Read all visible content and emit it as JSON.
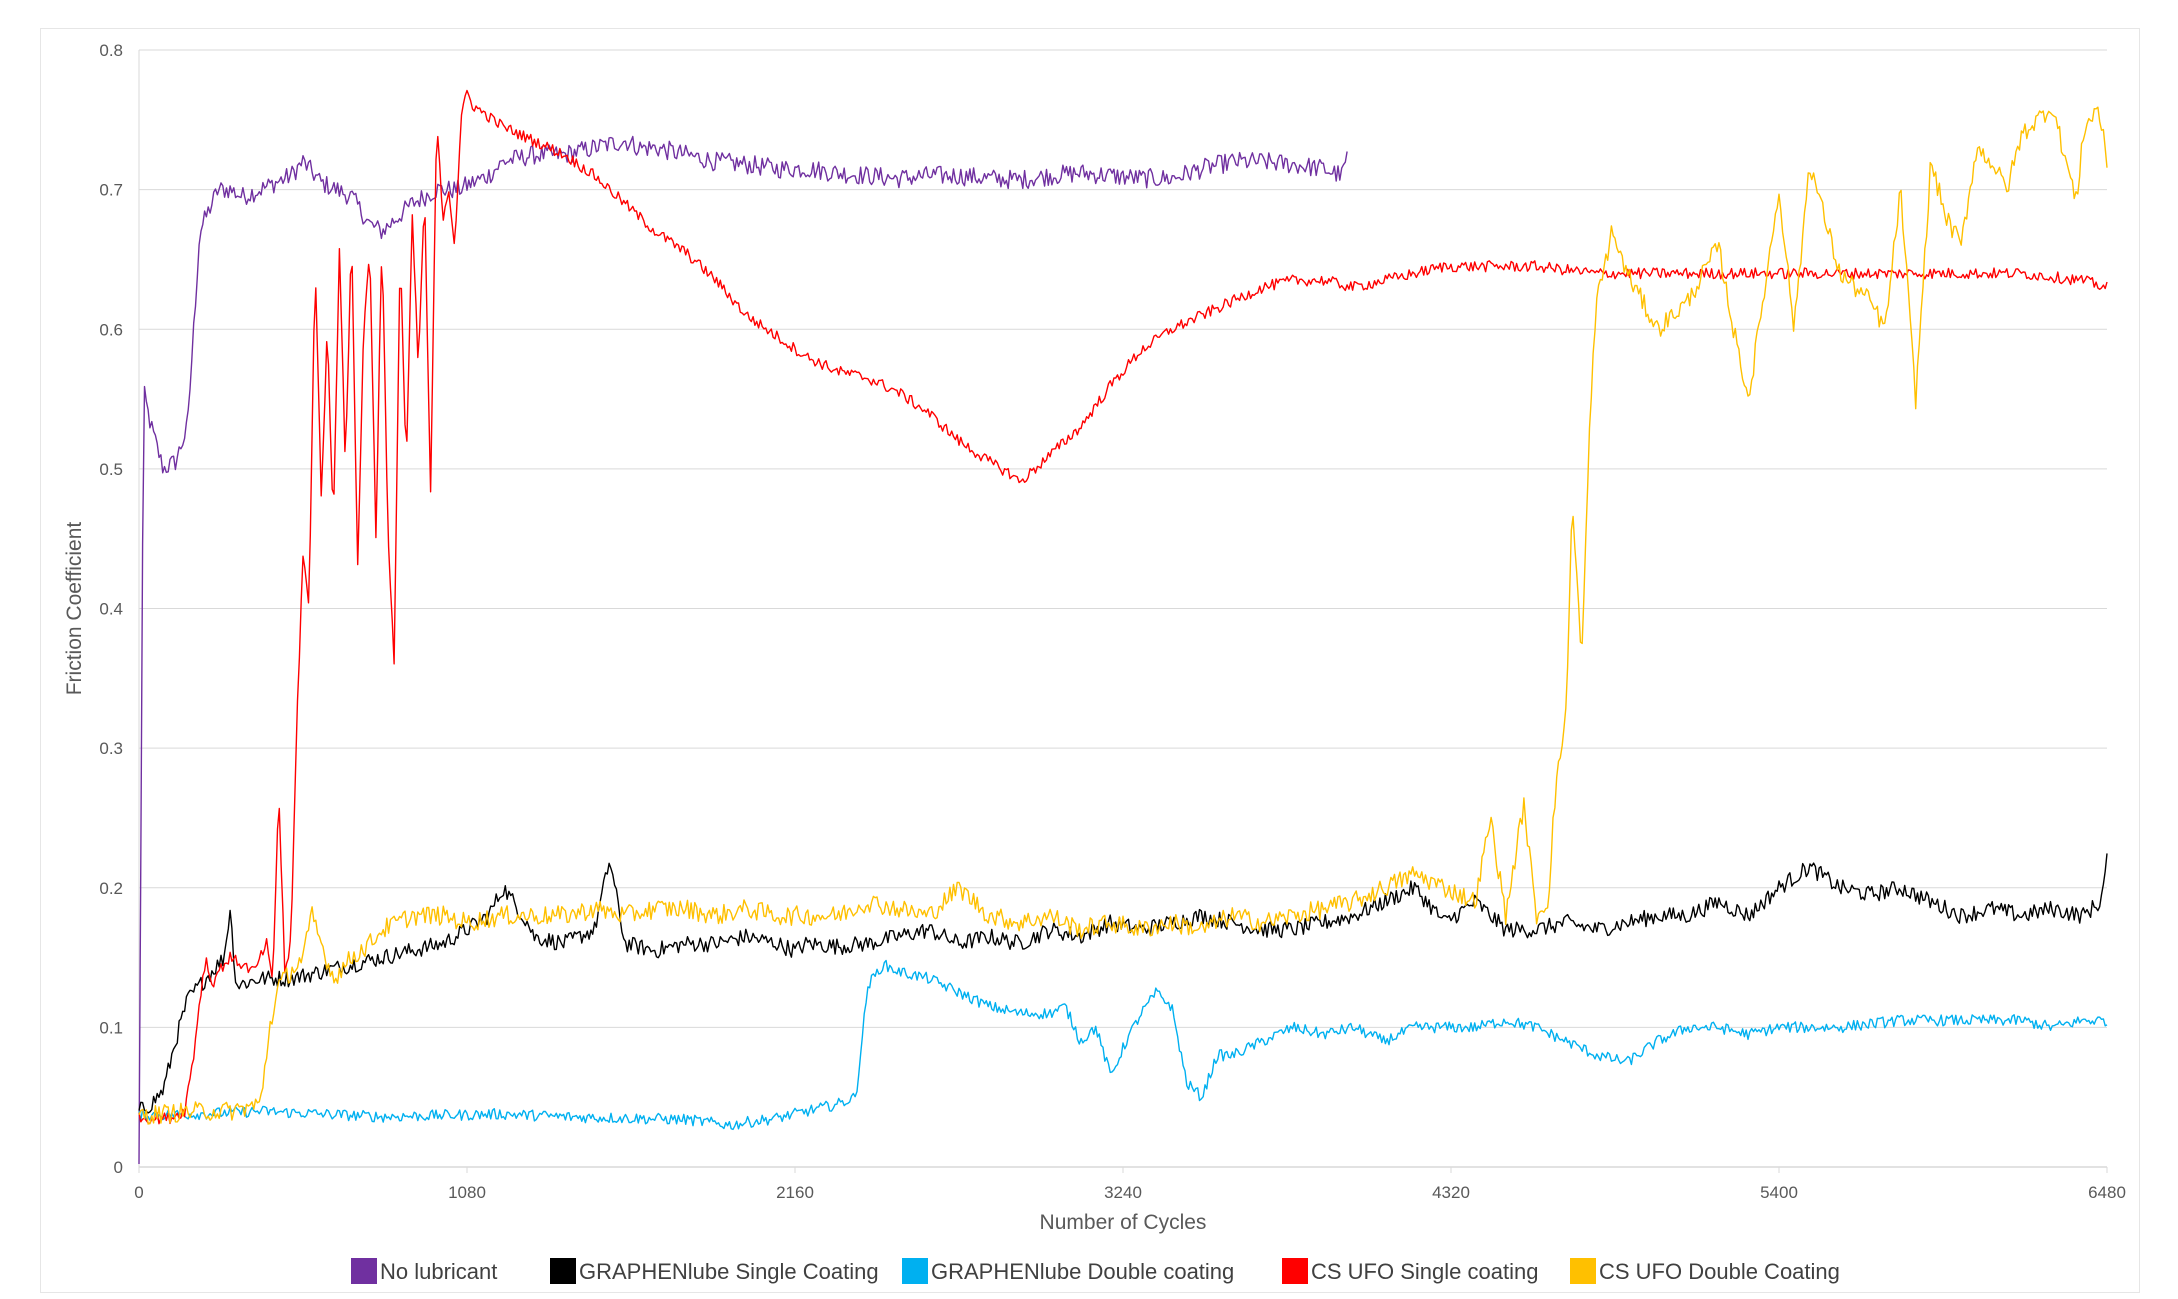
{
  "chart_data": {
    "type": "line",
    "title": "",
    "xlabel": "Number of Cycles",
    "ylabel": "Friction Coefficient",
    "xlim": [
      0,
      6480
    ],
    "ylim": [
      0,
      0.8
    ],
    "x_ticks": [
      0,
      1080,
      2160,
      3240,
      4320,
      5400,
      6480
    ],
    "y_ticks": [
      0,
      0.1,
      0.2,
      0.3,
      0.4,
      0.5,
      0.6,
      0.7,
      0.8
    ],
    "y_tick_labels": [
      "0",
      "0.1",
      "0.2",
      "0.3",
      "0.4",
      "0.5",
      "0.6",
      "0.7",
      "0.8"
    ],
    "grid": "horizontal",
    "legend_position": "bottom",
    "series": [
      {
        "name": "No lubricant",
        "color": "#7030a0",
        "noise": 0.007,
        "x": [
          0,
          15,
          40,
          80,
          120,
          160,
          180,
          200,
          240,
          260,
          300,
          340,
          400,
          500,
          540,
          600,
          700,
          760,
          800,
          900,
          980,
          1050,
          1100,
          1150,
          1200,
          1300,
          1400,
          1500,
          1600,
          1650,
          1700,
          1800,
          1900,
          2000,
          2100,
          2200,
          2300,
          2400,
          2500,
          2600,
          2700,
          2800,
          2900,
          3000,
          3100,
          3200,
          3300,
          3400,
          3500,
          3600,
          3700,
          3800,
          3900,
          3960,
          3980
        ],
        "y": [
          0,
          0.555,
          0.53,
          0.5,
          0.505,
          0.53,
          0.6,
          0.67,
          0.69,
          0.7,
          0.7,
          0.695,
          0.7,
          0.71,
          0.72,
          0.705,
          0.695,
          0.675,
          0.67,
          0.69,
          0.7,
          0.7,
          0.705,
          0.71,
          0.72,
          0.725,
          0.725,
          0.73,
          0.735,
          0.73,
          0.73,
          0.725,
          0.72,
          0.718,
          0.715,
          0.715,
          0.712,
          0.71,
          0.708,
          0.71,
          0.71,
          0.708,
          0.707,
          0.71,
          0.712,
          0.71,
          0.708,
          0.708,
          0.715,
          0.72,
          0.72,
          0.718,
          0.715,
          0.71,
          0.725
        ]
      },
      {
        "name": "GRAPHENlube Single Coating",
        "color": "#000000",
        "noise": 0.006,
        "x": [
          0,
          40,
          80,
          120,
          160,
          200,
          240,
          280,
          300,
          320,
          400,
          500,
          600,
          700,
          800,
          900,
          1000,
          1080,
          1150,
          1200,
          1280,
          1300,
          1400,
          1500,
          1550,
          1600,
          1700,
          1800,
          1900,
          2000,
          2100,
          2160,
          2200,
          2300,
          2400,
          2500,
          2600,
          2700,
          2800,
          2900,
          3000,
          3100,
          3200,
          3300,
          3400,
          3500,
          3600,
          3700,
          3800,
          3900,
          4000,
          4100,
          4200,
          4300,
          4400,
          4500,
          4600,
          4700,
          4800,
          4900,
          5000,
          5100,
          5200,
          5300,
          5400,
          5500,
          5600,
          5700,
          5800,
          5900,
          6000,
          6100,
          6200,
          6300,
          6400,
          6460,
          6480
        ],
        "y": [
          0.04,
          0.045,
          0.055,
          0.09,
          0.12,
          0.13,
          0.14,
          0.15,
          0.185,
          0.13,
          0.135,
          0.135,
          0.14,
          0.145,
          0.15,
          0.155,
          0.16,
          0.17,
          0.18,
          0.2,
          0.175,
          0.165,
          0.16,
          0.17,
          0.22,
          0.16,
          0.155,
          0.16,
          0.16,
          0.165,
          0.16,
          0.155,
          0.16,
          0.158,
          0.16,
          0.165,
          0.17,
          0.16,
          0.165,
          0.16,
          0.17,
          0.165,
          0.175,
          0.17,
          0.175,
          0.18,
          0.175,
          0.17,
          0.17,
          0.175,
          0.18,
          0.19,
          0.2,
          0.175,
          0.19,
          0.17,
          0.17,
          0.175,
          0.17,
          0.175,
          0.18,
          0.18,
          0.19,
          0.18,
          0.2,
          0.215,
          0.2,
          0.195,
          0.2,
          0.19,
          0.18,
          0.185,
          0.18,
          0.185,
          0.18,
          0.19,
          0.22
        ]
      },
      {
        "name": "GRAPHENlube Double coating",
        "color": "#00b0f0",
        "noise": 0.004,
        "x": [
          0,
          200,
          400,
          600,
          800,
          1000,
          1200,
          1400,
          1600,
          1800,
          1950,
          2000,
          2100,
          2200,
          2300,
          2360,
          2400,
          2450,
          2500,
          2600,
          2700,
          2800,
          2900,
          3000,
          3050,
          3100,
          3150,
          3200,
          3250,
          3300,
          3350,
          3400,
          3450,
          3500,
          3550,
          3600,
          3700,
          3800,
          3900,
          4000,
          4100,
          4200,
          4300,
          4400,
          4500,
          4600,
          4700,
          4800,
          4900,
          5000,
          5100,
          5200,
          5300,
          5400,
          5600,
          5800,
          6000,
          6200,
          6300,
          6400,
          6480
        ],
        "y": [
          0.037,
          0.038,
          0.04,
          0.038,
          0.036,
          0.037,
          0.038,
          0.036,
          0.035,
          0.034,
          0.03,
          0.032,
          0.035,
          0.04,
          0.045,
          0.05,
          0.13,
          0.145,
          0.14,
          0.135,
          0.125,
          0.115,
          0.11,
          0.11,
          0.115,
          0.09,
          0.1,
          0.065,
          0.09,
          0.11,
          0.125,
          0.115,
          0.06,
          0.05,
          0.08,
          0.08,
          0.09,
          0.1,
          0.095,
          0.1,
          0.09,
          0.1,
          0.1,
          0.1,
          0.105,
          0.1,
          0.09,
          0.08,
          0.075,
          0.09,
          0.1,
          0.1,
          0.095,
          0.1,
          0.1,
          0.105,
          0.105,
          0.105,
          0.1,
          0.105,
          0.105
        ]
      },
      {
        "name": "CS UFO Single coating",
        "color": "#ff0000",
        "noise": 0.004,
        "x": [
          0,
          100,
          150,
          180,
          200,
          220,
          240,
          260,
          300,
          380,
          420,
          440,
          460,
          480,
          500,
          520,
          540,
          560,
          580,
          600,
          620,
          640,
          660,
          680,
          700,
          720,
          740,
          760,
          780,
          800,
          820,
          840,
          860,
          880,
          900,
          920,
          940,
          960,
          980,
          1000,
          1020,
          1040,
          1060,
          1080,
          1100,
          1200,
          1300,
          1400,
          1500,
          1600,
          1700,
          1800,
          1900,
          2000,
          2100,
          2200,
          2300,
          2400,
          2500,
          2600,
          2700,
          2800,
          2880,
          2900,
          2950,
          3000,
          3100,
          3200,
          3300,
          3400,
          3500,
          3600,
          3700,
          3800,
          3900,
          4000,
          4100,
          4200,
          4300,
          4400,
          4500,
          4600,
          4800,
          5000,
          5200,
          5400,
          5600,
          5800,
          6000,
          6200,
          6400,
          6480
        ],
        "y": [
          0.035,
          0.035,
          0.04,
          0.08,
          0.12,
          0.15,
          0.13,
          0.14,
          0.15,
          0.14,
          0.16,
          0.13,
          0.27,
          0.14,
          0.16,
          0.32,
          0.44,
          0.4,
          0.65,
          0.48,
          0.6,
          0.46,
          0.66,
          0.5,
          0.67,
          0.43,
          0.6,
          0.66,
          0.45,
          0.67,
          0.45,
          0.36,
          0.66,
          0.5,
          0.68,
          0.57,
          0.7,
          0.48,
          0.75,
          0.68,
          0.7,
          0.66,
          0.75,
          0.77,
          0.76,
          0.745,
          0.735,
          0.725,
          0.71,
          0.69,
          0.67,
          0.655,
          0.635,
          0.61,
          0.595,
          0.58,
          0.57,
          0.565,
          0.555,
          0.54,
          0.52,
          0.505,
          0.495,
          0.49,
          0.5,
          0.51,
          0.53,
          0.56,
          0.585,
          0.6,
          0.61,
          0.62,
          0.63,
          0.635,
          0.635,
          0.63,
          0.635,
          0.64,
          0.645,
          0.645,
          0.645,
          0.645,
          0.64,
          0.64,
          0.64,
          0.64,
          0.64,
          0.64,
          0.64,
          0.64,
          0.635,
          0.63
        ]
      },
      {
        "name": "CS UFO Double Coating",
        "color": "#ffc000",
        "noise": 0.007,
        "x": [
          0,
          200,
          300,
          400,
          430,
          460,
          500,
          540,
          570,
          600,
          640,
          660,
          700,
          760,
          800,
          900,
          1000,
          1080,
          1200,
          1300,
          1400,
          1500,
          1600,
          1700,
          1800,
          1900,
          2000,
          2100,
          2200,
          2300,
          2400,
          2500,
          2600,
          2700,
          2800,
          2900,
          3000,
          3100,
          3200,
          3300,
          3400,
          3500,
          3600,
          3700,
          3800,
          3900,
          4000,
          4100,
          4200,
          4300,
          4400,
          4450,
          4500,
          4560,
          4600,
          4640,
          4660,
          4700,
          4720,
          4750,
          4780,
          4800,
          4850,
          4900,
          4950,
          5000,
          5100,
          5150,
          5200,
          5250,
          5300,
          5400,
          5450,
          5500,
          5600,
          5700,
          5750,
          5800,
          5850,
          5900,
          5950,
          6000,
          6050,
          6100,
          6150,
          6200,
          6300,
          6380,
          6400,
          6450,
          6480
        ],
        "y": [
          0.037,
          0.04,
          0.04,
          0.045,
          0.1,
          0.13,
          0.14,
          0.15,
          0.18,
          0.16,
          0.135,
          0.14,
          0.15,
          0.16,
          0.17,
          0.18,
          0.18,
          0.175,
          0.18,
          0.18,
          0.18,
          0.185,
          0.18,
          0.185,
          0.185,
          0.18,
          0.185,
          0.18,
          0.18,
          0.18,
          0.19,
          0.185,
          0.18,
          0.2,
          0.18,
          0.175,
          0.18,
          0.17,
          0.175,
          0.17,
          0.175,
          0.17,
          0.18,
          0.175,
          0.18,
          0.185,
          0.19,
          0.2,
          0.21,
          0.2,
          0.19,
          0.25,
          0.18,
          0.26,
          0.18,
          0.19,
          0.26,
          0.33,
          0.48,
          0.36,
          0.55,
          0.62,
          0.67,
          0.64,
          0.62,
          0.6,
          0.62,
          0.64,
          0.66,
          0.6,
          0.55,
          0.7,
          0.6,
          0.72,
          0.64,
          0.62,
          0.6,
          0.7,
          0.55,
          0.72,
          0.68,
          0.66,
          0.73,
          0.72,
          0.7,
          0.74,
          0.76,
          0.69,
          0.74,
          0.76,
          0.72
        ]
      }
    ]
  }
}
